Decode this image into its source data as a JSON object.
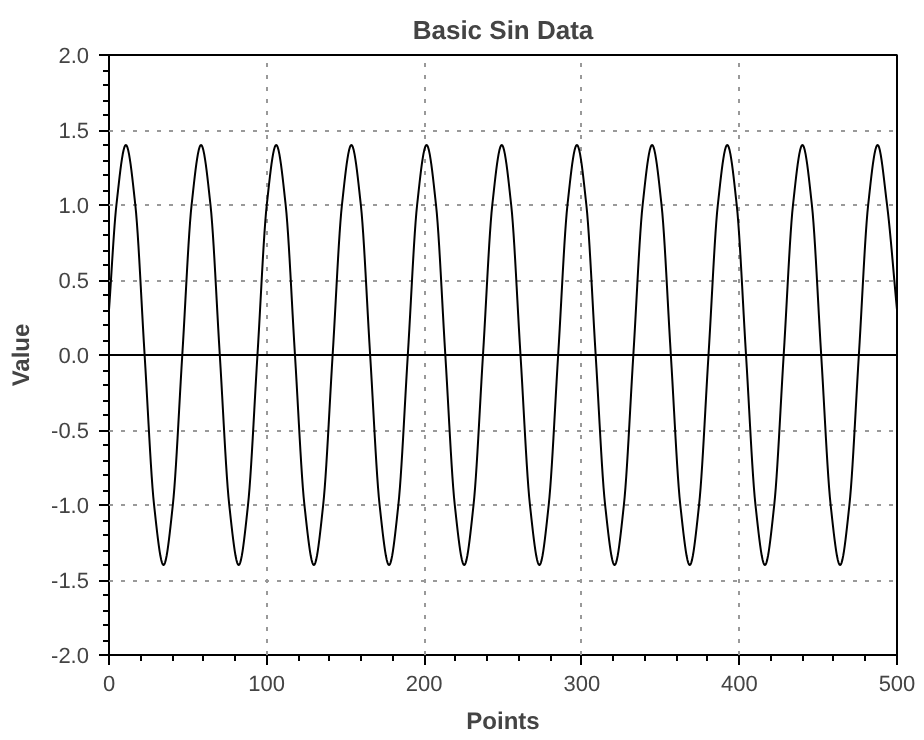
{
  "chart_data": {
    "type": "line",
    "title": "Basic Sin Data",
    "xlabel": "Points",
    "ylabel": "Value",
    "x": [
      0,
      4.7,
      10.7,
      16.7,
      22.6,
      28.6,
      34.6,
      40.5,
      46.5,
      52.4,
      58.4,
      64.4,
      70.3,
      76.3,
      82.3,
      88.2,
      94.2,
      100.1,
      106.1,
      112.1,
      118.0,
      124.0,
      130.0,
      135.9,
      141.9,
      147.8,
      153.8,
      159.8,
      165.7,
      171.7,
      177.7,
      183.6,
      189.6,
      195.5,
      201.5,
      207.5,
      213.4,
      219.4,
      225.4,
      231.3,
      237.3,
      243.2,
      249.2,
      255.2,
      261.1,
      267.1,
      273.1,
      279.0,
      285.0,
      290.9,
      296.9,
      302.9,
      308.8,
      314.8,
      320.8,
      326.7,
      332.7,
      338.6,
      344.6,
      350.6,
      356.5,
      362.5,
      368.5,
      374.4,
      380.4,
      386.3,
      392.3,
      398.3,
      404.2,
      410.2,
      416.2,
      422.1,
      428.1,
      434.0,
      440.0,
      446.0,
      451.9,
      457.9,
      463.9,
      469.8,
      475.8,
      481.7,
      487.7,
      493.7,
      500
    ],
    "series": [
      {
        "color": "#000000",
        "values": [
          0.3,
          1.0,
          1.4,
          1.0,
          0,
          -1.0,
          -1.4,
          -1.0,
          0,
          1.0,
          1.4,
          1.0,
          0,
          -1.0,
          -1.4,
          -1.0,
          0,
          1.0,
          1.4,
          1.0,
          0,
          -1.0,
          -1.4,
          -1.0,
          0,
          1.0,
          1.4,
          1.0,
          0,
          -1.0,
          -1.4,
          -1.0,
          0,
          1.0,
          1.4,
          1.0,
          0,
          -1.0,
          -1.4,
          -1.0,
          0,
          1.0,
          1.4,
          1.0,
          0,
          -1.0,
          -1.4,
          -1.0,
          0,
          1.0,
          1.4,
          1.0,
          0,
          -1.0,
          -1.4,
          -1.0,
          0,
          1.0,
          1.4,
          1.0,
          0,
          -1.0,
          -1.4,
          -1.0,
          0,
          1.0,
          1.4,
          1.0,
          0,
          -1.0,
          -1.4,
          -1.0,
          0,
          1.0,
          1.4,
          1.0,
          0,
          -1.0,
          -1.4,
          -1.0,
          0,
          1.0,
          1.4,
          1.0,
          0.3
        ]
      }
    ],
    "xlim": [
      0,
      500
    ],
    "xticks": [
      0,
      100,
      200,
      300,
      400,
      500
    ],
    "ylim": [
      -2.0,
      2.0
    ],
    "yticks": [
      {
        "value": -2,
        "label": "-2.0"
      },
      {
        "value": -1.5,
        "label": "-1.5"
      },
      {
        "value": -1,
        "label": "-1.0"
      },
      {
        "value": -0.5,
        "label": "-0.5"
      },
      {
        "value": 0,
        "label": "0.0"
      },
      {
        "value": 0.5,
        "label": "0.5"
      },
      {
        "value": 1,
        "label": "1.0"
      },
      {
        "value": 1.5,
        "label": "1.5"
      },
      {
        "value": 2,
        "label": "2.0"
      }
    ],
    "ref_lines": [
      {
        "axis": "y",
        "value": 0,
        "color": "#000000",
        "line_style": "solid"
      }
    ],
    "grid": true,
    "line_style": "solid"
  }
}
